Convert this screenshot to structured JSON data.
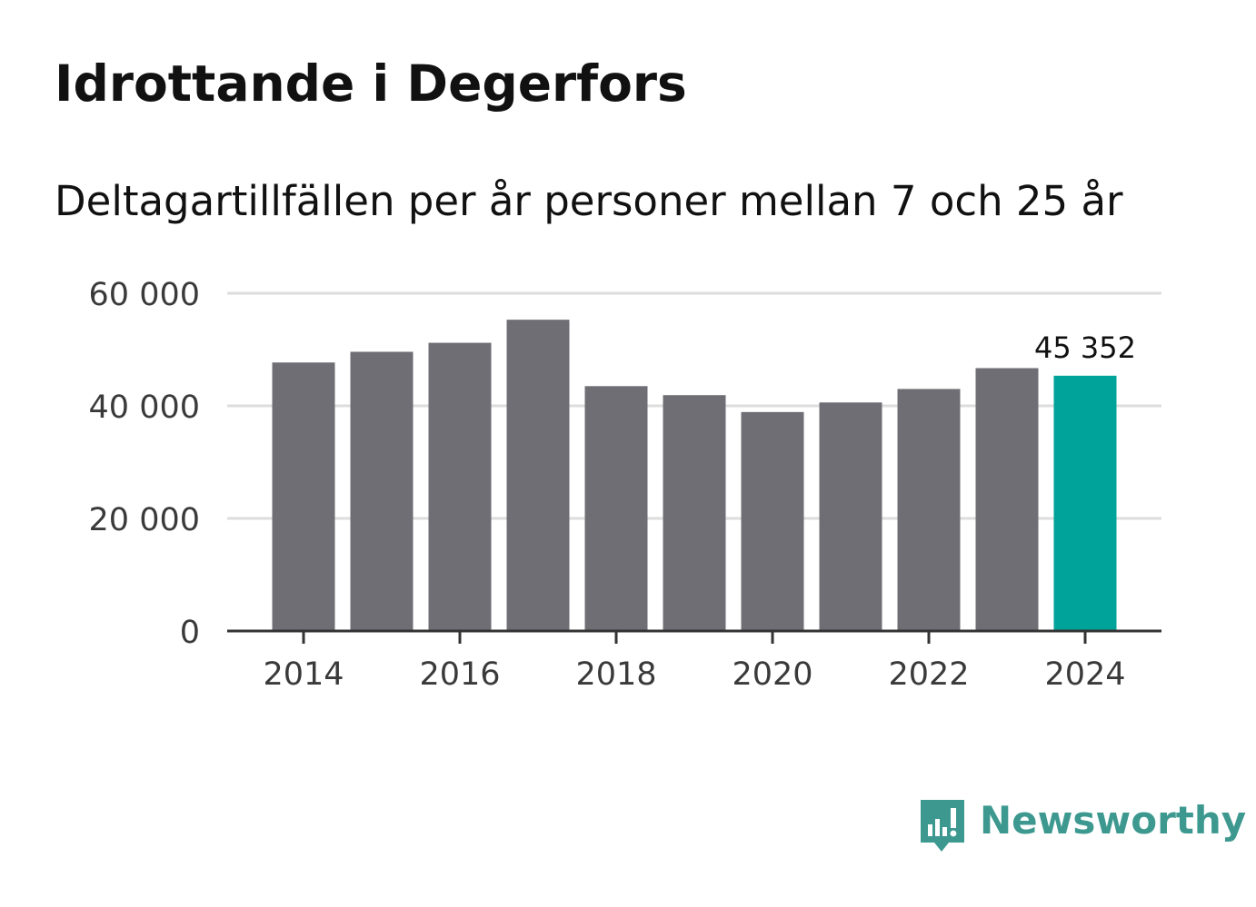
{
  "title": "Idrottande i Degerfors",
  "subtitle": "Deltagartillfällen per år personer mellan 7 och 25 år",
  "brand": {
    "name": "Newsworthy",
    "color": "#3d9990",
    "icon": "newsworthy-logo-icon"
  },
  "colors": {
    "bar": "#6f6e74",
    "highlight": "#00a39a",
    "grid": "#dddddd",
    "axis": "#333333"
  },
  "chart_data": {
    "type": "bar",
    "title": "Idrottande i Degerfors",
    "subtitle": "Deltagartillfällen per år personer mellan 7 och 25 år",
    "xlabel": "",
    "ylabel": "",
    "categories": [
      "2014",
      "2015",
      "2016",
      "2017",
      "2018",
      "2019",
      "2020",
      "2021",
      "2022",
      "2023",
      "2024"
    ],
    "values": [
      47700,
      49600,
      51200,
      55300,
      43500,
      41900,
      38900,
      40600,
      43000,
      46700,
      45352
    ],
    "highlight_index": 10,
    "highlight_label": "45 352",
    "ylim": [
      0,
      60000
    ],
    "yticks": [
      0,
      20000,
      40000,
      60000
    ],
    "ytick_labels": [
      "0",
      "20 000",
      "40 000",
      "60 000"
    ],
    "xticks": [
      "2014",
      "2016",
      "2018",
      "2020",
      "2022",
      "2024"
    ],
    "grid": true,
    "legend": "none"
  }
}
